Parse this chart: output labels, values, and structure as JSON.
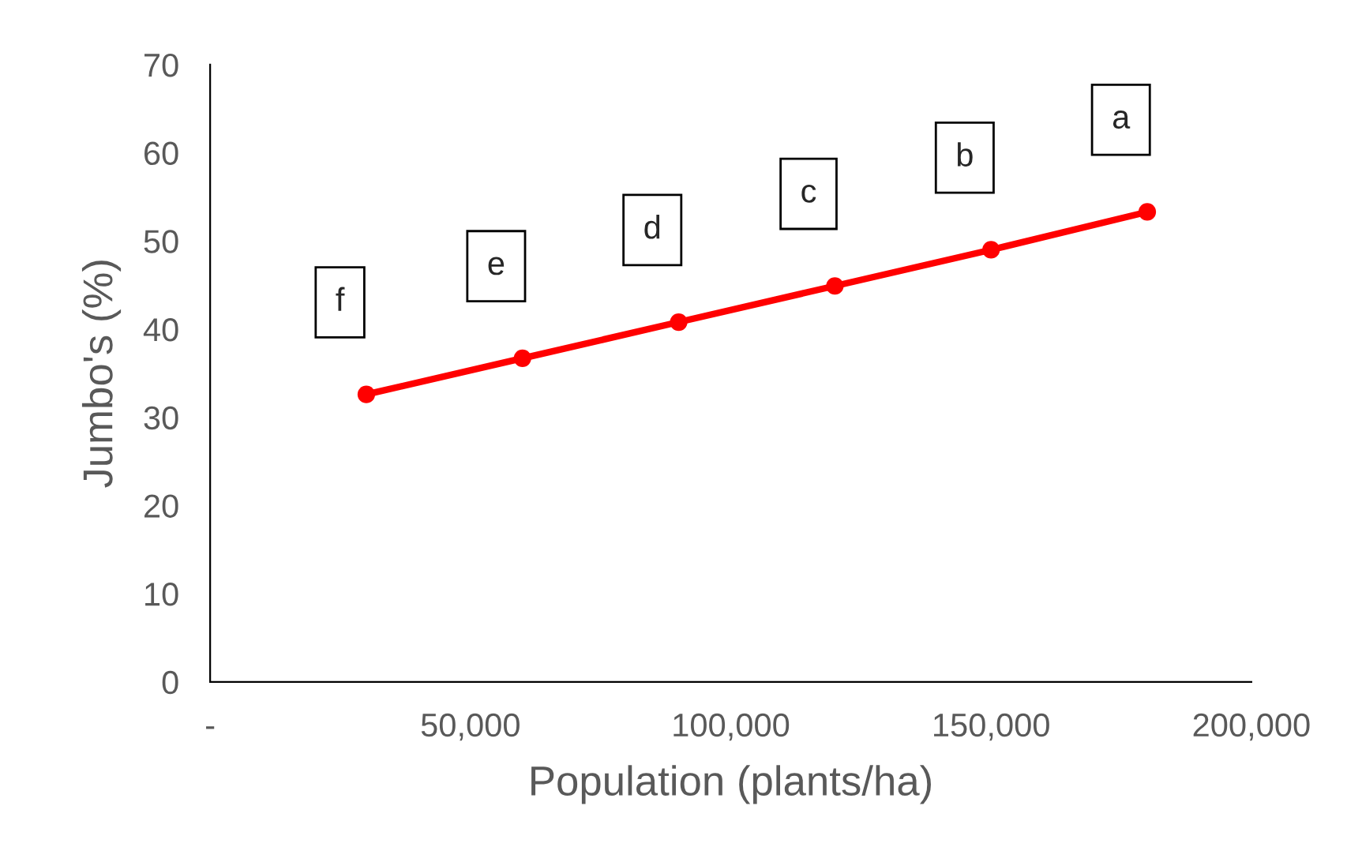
{
  "chart_data": {
    "type": "line",
    "xlabel": "Population (plants/ha)",
    "ylabel": "Jumbo's (%)",
    "x": [
      30000,
      60000,
      90000,
      120000,
      150000,
      180000
    ],
    "series": [
      {
        "color": "#ff0000",
        "values": [
          32.6,
          36.7,
          40.8,
          44.9,
          49.0,
          53.3
        ]
      }
    ],
    "xlim": [
      0,
      200000
    ],
    "xticks": [
      {
        "value": 0,
        "label": "-"
      },
      {
        "value": 50000,
        "label": "50,000"
      },
      {
        "value": 100000,
        "label": "100,000"
      },
      {
        "value": 150000,
        "label": "150,000"
      },
      {
        "value": 200000,
        "label": "200,000"
      }
    ],
    "ylim": [
      0,
      70
    ],
    "yticks": [
      0,
      10,
      20,
      30,
      40,
      50,
      60,
      70
    ],
    "marker": "circle",
    "line_style": "solid",
    "grid": false,
    "legend": false,
    "annotations": [
      {
        "text": "f",
        "x": 30000,
        "y": 32.6
      },
      {
        "text": "e",
        "x": 60000,
        "y": 36.7
      },
      {
        "text": "d",
        "x": 90000,
        "y": 40.8
      },
      {
        "text": "c",
        "x": 120000,
        "y": 44.9
      },
      {
        "text": "b",
        "x": 150000,
        "y": 49.0
      },
      {
        "text": "a",
        "x": 180000,
        "y": 53.3
      }
    ]
  }
}
